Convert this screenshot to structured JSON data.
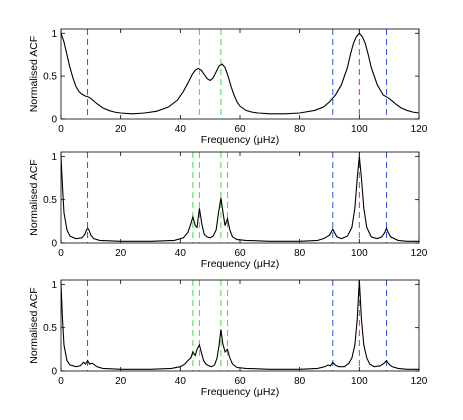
{
  "chart_data": [
    {
      "type": "line",
      "xlabel": "Frequency (μHz)",
      "ylabel": "Normalised ACF",
      "xlim": [
        0,
        120
      ],
      "ylim": [
        0,
        1.05
      ],
      "xticks": [
        0,
        20,
        40,
        60,
        80,
        100,
        120
      ],
      "yticks": [
        0,
        0.5,
        1
      ],
      "ytick_labels": [
        "0",
        "0.5",
        "1"
      ],
      "grid": false,
      "vlines": [
        {
          "x": 8.9,
          "color": "#3355dd"
        },
        {
          "x": 91.1,
          "color": "#3355dd"
        },
        {
          "x": 109.1,
          "color": "#3355dd"
        },
        {
          "x": 46.4,
          "color": "#44dd44"
        },
        {
          "x": 53.6,
          "color": "#44dd44"
        },
        {
          "x": 100,
          "color": "#dd3333"
        }
      ],
      "series": [
        {
          "color": "#000000",
          "x": [
            0,
            1,
            2,
            3,
            4,
            5,
            6,
            7,
            8,
            9,
            10,
            12,
            14,
            16,
            18,
            20,
            24,
            28,
            32,
            36,
            39,
            41,
            43,
            44,
            45,
            46,
            47,
            48,
            49,
            50,
            51,
            52,
            53,
            54,
            55,
            56,
            57,
            58,
            59,
            60,
            62,
            64,
            66,
            70,
            75,
            80,
            85,
            88,
            90,
            91,
            92,
            94,
            96,
            97,
            98,
            99,
            100,
            101,
            102,
            103,
            104,
            106,
            108,
            109,
            110,
            112,
            114,
            116,
            118,
            120
          ],
          "y": [
            1.0,
            0.9,
            0.75,
            0.6,
            0.48,
            0.38,
            0.32,
            0.29,
            0.27,
            0.26,
            0.24,
            0.18,
            0.13,
            0.1,
            0.08,
            0.07,
            0.06,
            0.07,
            0.09,
            0.14,
            0.22,
            0.32,
            0.45,
            0.52,
            0.57,
            0.59,
            0.57,
            0.52,
            0.47,
            0.45,
            0.48,
            0.55,
            0.62,
            0.64,
            0.6,
            0.5,
            0.38,
            0.28,
            0.2,
            0.15,
            0.1,
            0.08,
            0.07,
            0.06,
            0.06,
            0.07,
            0.1,
            0.14,
            0.2,
            0.24,
            0.28,
            0.4,
            0.6,
            0.75,
            0.88,
            0.96,
            1.0,
            0.96,
            0.88,
            0.75,
            0.6,
            0.4,
            0.28,
            0.26,
            0.24,
            0.18,
            0.13,
            0.1,
            0.08,
            0.07
          ]
        }
      ]
    },
    {
      "type": "line",
      "xlabel": "Frequency (μHz)",
      "ylabel": "Normalised ACF",
      "xlim": [
        0,
        120
      ],
      "ylim": [
        0,
        1.05
      ],
      "xticks": [
        0,
        20,
        40,
        60,
        80,
        100,
        120
      ],
      "yticks": [
        0,
        0.5,
        1
      ],
      "ytick_labels": [
        "0",
        "0.5",
        "1"
      ],
      "grid": false,
      "vlines": [
        {
          "x": 8.9,
          "color": "#3355dd"
        },
        {
          "x": 91.1,
          "color": "#3355dd"
        },
        {
          "x": 109.1,
          "color": "#3355dd"
        },
        {
          "x": 44.2,
          "color": "#44dd44"
        },
        {
          "x": 46.4,
          "color": "#44dd44"
        },
        {
          "x": 53.6,
          "color": "#44dd44"
        },
        {
          "x": 55.8,
          "color": "#44dd44"
        },
        {
          "x": 100,
          "color": "#dd3333"
        }
      ],
      "series": [
        {
          "color": "#000000",
          "x": [
            0,
            0.5,
            1,
            2,
            3,
            5,
            7,
            8,
            8.5,
            9,
            9.5,
            10,
            11,
            13,
            20,
            30,
            38,
            41,
            42.5,
            43.5,
            44.2,
            45,
            45.6,
            46.4,
            47.2,
            48,
            49,
            50,
            51,
            52,
            52.8,
            53.6,
            54.4,
            55,
            55.8,
            56.6,
            57.5,
            59,
            62,
            70,
            80,
            86,
            88,
            90,
            90.5,
            91.1,
            91.7,
            92.5,
            94,
            96,
            97.5,
            98.5,
            99.3,
            100,
            100.7,
            101.5,
            102.5,
            104,
            106,
            107.5,
            108.5,
            109.1,
            109.7,
            110.5,
            113,
            116,
            120
          ],
          "y": [
            1.0,
            0.65,
            0.35,
            0.15,
            0.08,
            0.05,
            0.06,
            0.1,
            0.15,
            0.17,
            0.14,
            0.09,
            0.05,
            0.03,
            0.02,
            0.02,
            0.03,
            0.06,
            0.12,
            0.22,
            0.3,
            0.2,
            0.18,
            0.4,
            0.22,
            0.1,
            0.07,
            0.06,
            0.08,
            0.15,
            0.35,
            0.52,
            0.33,
            0.2,
            0.28,
            0.15,
            0.07,
            0.04,
            0.03,
            0.02,
            0.02,
            0.03,
            0.05,
            0.09,
            0.12,
            0.16,
            0.12,
            0.07,
            0.05,
            0.08,
            0.18,
            0.4,
            0.75,
            1.0,
            0.75,
            0.4,
            0.18,
            0.07,
            0.05,
            0.07,
            0.12,
            0.17,
            0.12,
            0.07,
            0.03,
            0.02,
            0.02
          ]
        }
      ]
    },
    {
      "type": "line",
      "xlabel": "Frequency (μHz)",
      "ylabel": "Normalised ACF",
      "xlim": [
        0,
        120
      ],
      "ylim": [
        0,
        1.05
      ],
      "xticks": [
        0,
        20,
        40,
        60,
        80,
        100,
        120
      ],
      "yticks": [
        0,
        0.5,
        1
      ],
      "ytick_labels": [
        "0",
        "0.5",
        "1"
      ],
      "grid": false,
      "vlines": [
        {
          "x": 8.9,
          "color": "#3355dd"
        },
        {
          "x": 91.1,
          "color": "#3355dd"
        },
        {
          "x": 109.1,
          "color": "#3355dd"
        },
        {
          "x": 44.2,
          "color": "#44dd44"
        },
        {
          "x": 46.4,
          "color": "#44dd44"
        },
        {
          "x": 53.6,
          "color": "#44dd44"
        },
        {
          "x": 55.8,
          "color": "#44dd44"
        },
        {
          "x": 100,
          "color": "#dd3333"
        }
      ],
      "series": [
        {
          "color": "#000000",
          "x": [
            0,
            0.5,
            1,
            2,
            3,
            5,
            6.5,
            7.5,
            8.2,
            8.9,
            9.6,
            10.5,
            12,
            14,
            20,
            30,
            37,
            40,
            41.5,
            42.5,
            43.5,
            44.2,
            45,
            45.6,
            46.4,
            47,
            47.8,
            48.6,
            49.5,
            50.5,
            51.5,
            52.3,
            53,
            53.6,
            54.2,
            55,
            55.8,
            56.6,
            57.5,
            59,
            62,
            70,
            80,
            86,
            88.5,
            89.5,
            90.3,
            91.1,
            91.9,
            93,
            95,
            96.5,
            97.5,
            98.5,
            99.3,
            100,
            100.7,
            101.5,
            102.5,
            103.5,
            105,
            107,
            108.3,
            109.1,
            109.9,
            111,
            113,
            116,
            120
          ],
          "y": [
            1.0,
            0.6,
            0.3,
            0.12,
            0.07,
            0.05,
            0.06,
            0.1,
            0.08,
            0.12,
            0.08,
            0.09,
            0.05,
            0.03,
            0.02,
            0.02,
            0.03,
            0.05,
            0.08,
            0.12,
            0.15,
            0.22,
            0.18,
            0.25,
            0.3,
            0.22,
            0.12,
            0.08,
            0.06,
            0.05,
            0.07,
            0.15,
            0.3,
            0.48,
            0.32,
            0.22,
            0.25,
            0.15,
            0.08,
            0.04,
            0.03,
            0.02,
            0.02,
            0.03,
            0.05,
            0.07,
            0.06,
            0.1,
            0.07,
            0.05,
            0.05,
            0.09,
            0.15,
            0.3,
            0.6,
            1.05,
            0.6,
            0.3,
            0.15,
            0.08,
            0.05,
            0.06,
            0.09,
            0.12,
            0.08,
            0.05,
            0.03,
            0.02,
            0.02
          ]
        }
      ]
    }
  ]
}
